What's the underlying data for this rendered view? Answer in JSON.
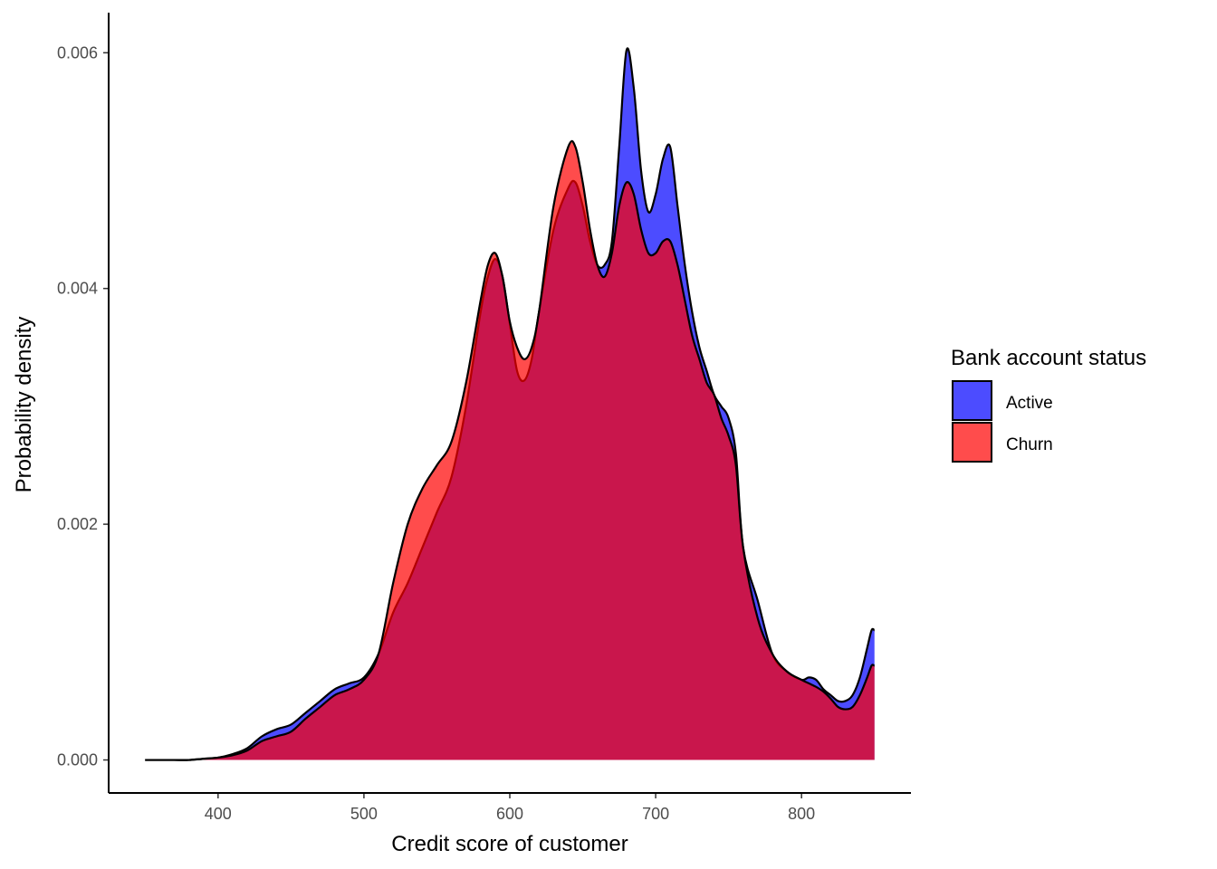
{
  "chart_data": {
    "type": "area",
    "subtype": "density",
    "title": "",
    "xlabel": "Credit score of customer",
    "ylabel": "Probability density",
    "xlim": [
      325,
      875
    ],
    "ylim": [
      -0.00028,
      0.00634
    ],
    "x_ticks": [
      400,
      500,
      600,
      700,
      800
    ],
    "x_tick_labels": [
      "400",
      "500",
      "600",
      "700",
      "800"
    ],
    "y_ticks": [
      0.0,
      0.002,
      0.004,
      0.006
    ],
    "y_tick_labels": [
      "0.000",
      "0.002",
      "0.004",
      "0.006"
    ],
    "grid": false,
    "legend": {
      "title": "Bank account status",
      "position": "right",
      "entries": [
        "Active",
        "Churn"
      ]
    },
    "series": [
      {
        "name": "Active",
        "color": "#0000ff",
        "opacity": 0.7,
        "x": [
          350,
          360,
          370,
          380,
          390,
          400,
          410,
          420,
          430,
          440,
          450,
          460,
          470,
          480,
          490,
          500,
          510,
          520,
          530,
          540,
          550,
          560,
          570,
          580,
          585,
          590,
          595,
          600,
          605,
          610,
          615,
          620,
          630,
          640,
          645,
          650,
          655,
          660,
          665,
          670,
          675,
          680,
          685,
          690,
          695,
          700,
          705,
          710,
          715,
          720,
          725,
          730,
          735,
          740,
          745,
          750,
          755,
          760,
          770,
          780,
          790,
          800,
          805,
          810,
          815,
          820,
          825,
          830,
          835,
          840,
          845,
          848,
          850
        ],
        "y": [
          0.0,
          0.0,
          0.0,
          0.0,
          1e-05,
          2e-05,
          5e-05,
          0.0001,
          0.0002,
          0.00026,
          0.0003,
          0.0004,
          0.0005,
          0.0006,
          0.00065,
          0.0007,
          0.0009,
          0.00125,
          0.0015,
          0.0018,
          0.0021,
          0.0024,
          0.003,
          0.0038,
          0.0041,
          0.00425,
          0.0041,
          0.0037,
          0.0033,
          0.00322,
          0.0034,
          0.0038,
          0.0045,
          0.00485,
          0.0049,
          0.0047,
          0.0044,
          0.0042,
          0.0042,
          0.0044,
          0.0052,
          0.00602,
          0.0057,
          0.005,
          0.00465,
          0.0048,
          0.0051,
          0.0052,
          0.0047,
          0.0042,
          0.0038,
          0.0035,
          0.0033,
          0.0031,
          0.003,
          0.0029,
          0.0026,
          0.0018,
          0.00135,
          0.0009,
          0.00075,
          0.00068,
          0.0007,
          0.00068,
          0.0006,
          0.00055,
          0.0005,
          0.0005,
          0.00055,
          0.0007,
          0.00095,
          0.0011,
          0.0011
        ]
      },
      {
        "name": "Churn",
        "color": "#ff0000",
        "opacity": 0.7,
        "x": [
          350,
          360,
          370,
          380,
          390,
          400,
          410,
          420,
          430,
          440,
          450,
          460,
          470,
          480,
          490,
          500,
          510,
          520,
          530,
          540,
          550,
          560,
          570,
          580,
          585,
          590,
          595,
          600,
          605,
          610,
          615,
          620,
          630,
          640,
          645,
          650,
          655,
          660,
          665,
          670,
          675,
          680,
          685,
          690,
          695,
          700,
          705,
          710,
          715,
          720,
          725,
          730,
          735,
          740,
          745,
          750,
          755,
          760,
          770,
          780,
          790,
          800,
          805,
          810,
          815,
          820,
          825,
          830,
          835,
          840,
          845,
          848,
          850
        ],
        "y": [
          0.0,
          0.0,
          0.0,
          0.0,
          1e-05,
          2e-05,
          4e-05,
          8e-05,
          0.00016,
          0.0002,
          0.00024,
          0.00035,
          0.00045,
          0.00055,
          0.0006,
          0.00068,
          0.0009,
          0.0015,
          0.002,
          0.0023,
          0.0025,
          0.0027,
          0.0032,
          0.0039,
          0.0042,
          0.0043,
          0.0041,
          0.00372,
          0.0035,
          0.0034,
          0.0035,
          0.0038,
          0.0047,
          0.0052,
          0.0052,
          0.0049,
          0.0045,
          0.0042,
          0.0041,
          0.0043,
          0.0047,
          0.0049,
          0.0048,
          0.0045,
          0.0043,
          0.0043,
          0.0044,
          0.0044,
          0.0042,
          0.0039,
          0.0036,
          0.0034,
          0.0032,
          0.0031,
          0.0029,
          0.00275,
          0.0025,
          0.0018,
          0.0012,
          0.0009,
          0.00075,
          0.00068,
          0.00065,
          0.00062,
          0.00058,
          0.00052,
          0.00045,
          0.00043,
          0.00045,
          0.00055,
          0.0007,
          0.0008,
          0.0008
        ]
      }
    ]
  }
}
